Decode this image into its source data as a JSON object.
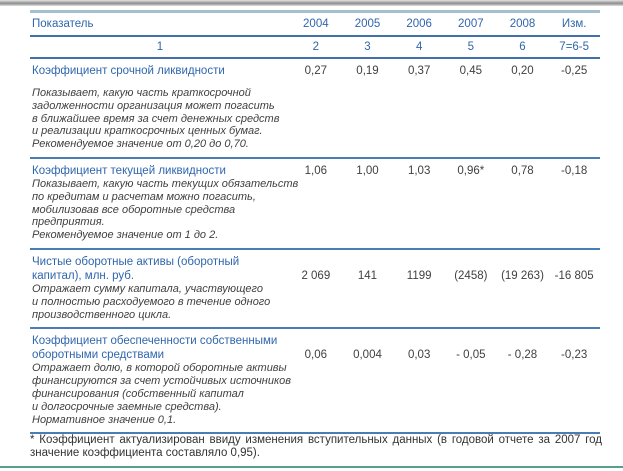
{
  "colors": {
    "accent_blue": "#2f66ad",
    "rule_blue": "#4170ab",
    "table_top_border": "#a6bfcd",
    "bottom_line_green": "#55a08e",
    "top_bar_gray": "#8d8d8d",
    "body_text": "#404040"
  },
  "table": {
    "header": {
      "label": "Показатель",
      "years": [
        "2004",
        "2005",
        "2006",
        "2007",
        "2008",
        "Изм."
      ]
    },
    "numbering": [
      "1",
      "2",
      "3",
      "4",
      "5",
      "6",
      "7=6-5"
    ],
    "rows": [
      {
        "title": "Коэффициент срочной ликвидности",
        "values": [
          "0,27",
          "0,19",
          "0,37",
          "0,45",
          "0,20",
          "-0,25"
        ],
        "desc": [
          "Показывает, какую часть краткосрочной",
          "задолженности организация может погасить",
          "в ближайшее время за счет денежных средств",
          "и реализации краткосрочных ценных бумаг.",
          "Рекомендуемое значение от 0,20 до 0,70."
        ]
      },
      {
        "title": "Коэффициент текущей ликвидности",
        "values": [
          "1,06",
          "1,00",
          "1,03",
          "0,96*",
          "0,78",
          "-0,18"
        ],
        "desc": [
          "Показывает, какую часть текущих обязательств",
          "по кредитам и расчетам можно погасить,",
          "мобилизовав все оборотные средства",
          "предприятия.",
          "Рекомендуемое значение от 1 до 2."
        ]
      },
      {
        "title_line1": "Чистые оборотные активы (оборотный",
        "title_line2": "капитал), млн. руб.",
        "values": [
          "2 069",
          "141",
          "1199",
          "(2458)",
          "(19 263)",
          "-16 805"
        ],
        "desc": [
          "Отражает сумму капитала, участвующего",
          "и полностью расходуемого в течение одного",
          "производственного цикла."
        ]
      },
      {
        "title_line1": "Коэффициент обеспеченности собственными",
        "title_line2": "оборотными средствами",
        "values": [
          "0,06",
          "0,004",
          "0,03",
          "- 0,05",
          "- 0,28",
          "-0,23"
        ],
        "desc": [
          "Отражает долю, в которой оборотные активы",
          "финансируются за счет устойчивых источников",
          "финансирования (собственный капитал",
          "и долгосрочные заемные средства).",
          "Нормативное значение 0,1."
        ]
      }
    ]
  },
  "footnote": {
    "line1": "* Коэффициент актуализирован ввиду изменения вступительных данных (в годовой отчете за 2007 год",
    "line2": "значение коэффициента составляло 0,95)."
  }
}
